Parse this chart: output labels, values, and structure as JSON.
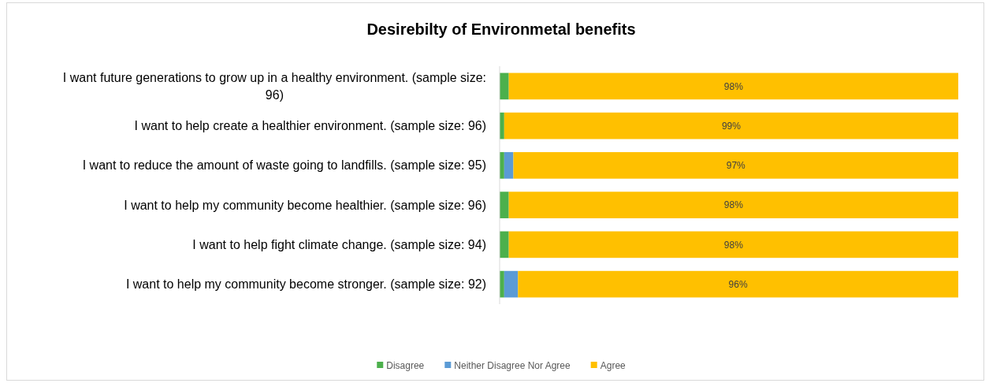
{
  "chart_data": {
    "type": "bar",
    "orientation": "horizontal",
    "stacked": true,
    "title": "Desirebilty of Environmetal benefits",
    "categories": [
      "I want future generations to grow up in a healthy environment. (sample size: 96)",
      "I want to help create a healthier environment. (sample size: 96)",
      "I want to reduce the amount of waste going to landfills. (sample size: 95)",
      "I want to help my community become healthier. (sample size: 96)",
      "I want to help fight climate change. (sample size: 94)",
      "I want to help my community become stronger. (sample size: 92)"
    ],
    "series": [
      {
        "name": "Disagree",
        "color": "#4cb04c",
        "values": [
          2,
          1,
          1,
          2,
          2,
          1
        ]
      },
      {
        "name": "Neither Disagree Nor Agree",
        "color": "#5b9bd5",
        "values": [
          0,
          0,
          2,
          0,
          0,
          3
        ]
      },
      {
        "name": "Agree",
        "color": "#ffc000",
        "values": [
          98,
          99,
          97,
          98,
          98,
          96
        ],
        "value_labels": [
          "98%",
          "99%",
          "97%",
          "98%",
          "98%",
          "96%"
        ]
      }
    ],
    "xlim": [
      0,
      100
    ],
    "tick_labels": "y",
    "legend": "bottom"
  }
}
